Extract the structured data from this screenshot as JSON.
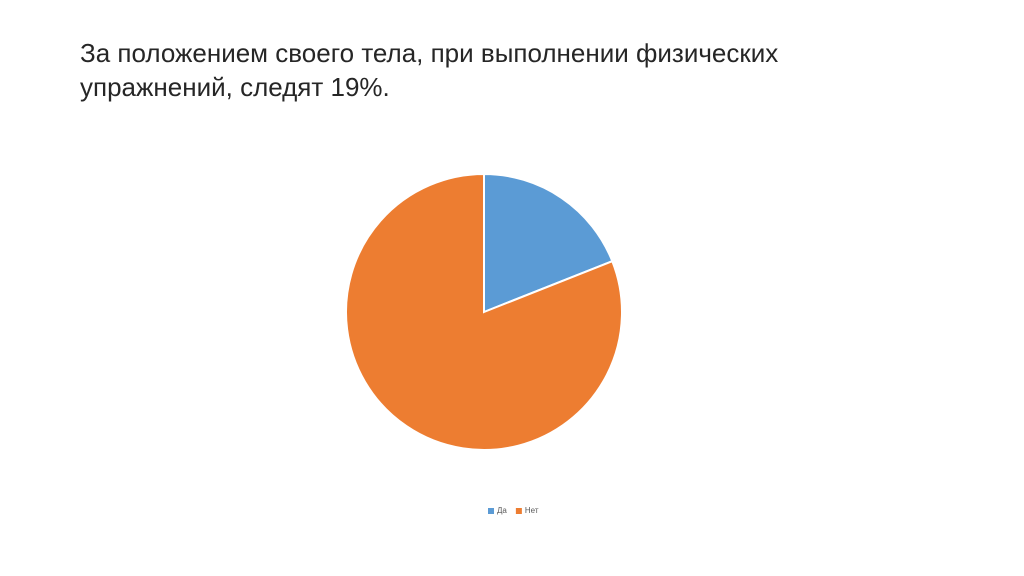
{
  "chart_data": {
    "type": "pie",
    "title": "За положением своего тела, при выполнении физических упражнений, следят 19%.",
    "categories": [
      "Да",
      "Нет"
    ],
    "values": [
      19,
      81
    ],
    "colors": [
      "#5b9bd5",
      "#ed7d31"
    ],
    "legend": "bottom"
  }
}
